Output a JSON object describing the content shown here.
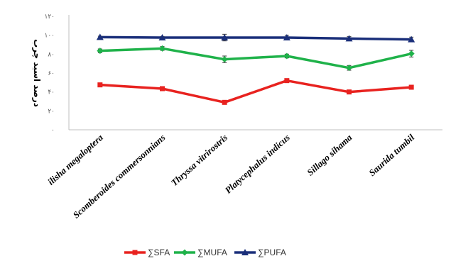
{
  "chart_data": {
    "type": "line",
    "title": "",
    "xlabel": "",
    "ylabel": "درصد اسید چرب",
    "ylim": [
      0,
      120
    ],
    "yticks": [
      "۰",
      "۲۰",
      "۴۰",
      "۶۰",
      "۸۰",
      "۱۰۰",
      "۱۲۰"
    ],
    "categories": [
      "ilisha megaloptera",
      "Scomberoides commersonnians",
      "Thryssa vitrirostris",
      "Platycephalus indicus",
      "Sillago sihama",
      "Saurida tumbil"
    ],
    "series": [
      {
        "name": "∑SFA",
        "color": "#e8221f",
        "marker": "square",
        "values": [
          47.5,
          43.5,
          29,
          52,
          40,
          45
        ],
        "errors": [
          1,
          1,
          1.5,
          1.5,
          1,
          1
        ]
      },
      {
        "name": "∑MUFA",
        "color": "#1fb24a",
        "marker": "diamond",
        "values": [
          83.5,
          86,
          74.5,
          78,
          65.5,
          80.5
        ],
        "errors": [
          2,
          2,
          3.5,
          2,
          2.5,
          3.5
        ]
      },
      {
        "name": "∑PUFA",
        "color": "#1a2f7a",
        "marker": "triangle",
        "values": [
          98,
          97.5,
          97.5,
          97.5,
          96.5,
          95.5
        ],
        "errors": [
          1,
          1,
          3.5,
          2.5,
          2,
          2.5
        ]
      }
    ],
    "legend_position": "bottom",
    "grid": false
  }
}
